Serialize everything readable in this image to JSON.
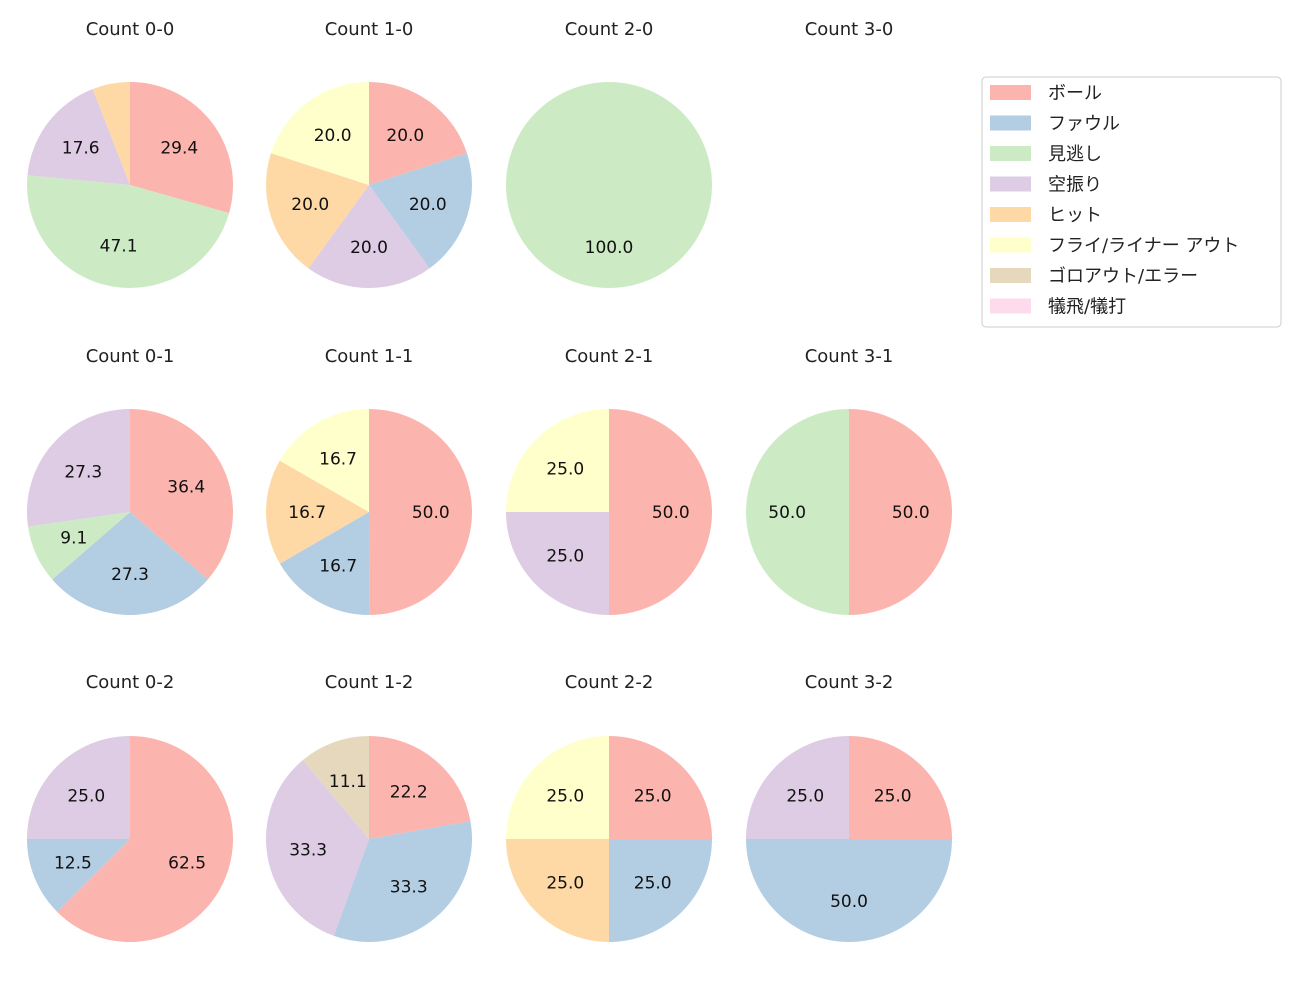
{
  "chart_data": {
    "type": "pie",
    "start_angle": 90,
    "direction": "clockwise",
    "label_format": "percent, one decimal",
    "categories": [
      "ボール",
      "ファウル",
      "見逃し",
      "空振り",
      "ヒット",
      "フライ/ライナー アウト",
      "ゴロアウト/エラー",
      "犠飛/犠打"
    ],
    "colors": [
      "#fbb4ae",
      "#b3cde3",
      "#ccebc5",
      "#decbe4",
      "#fed9a6",
      "#ffffcc",
      "#e5d8bd",
      "#fddaec"
    ],
    "legend_placement": "top-right",
    "pies": [
      {
        "title": "Count 0-0",
        "values": [
          29.4,
          0,
          47.1,
          17.6,
          5.9,
          0,
          0,
          0
        ]
      },
      {
        "title": "Count 1-0",
        "values": [
          20,
          20,
          0,
          20,
          20,
          20,
          0,
          0
        ]
      },
      {
        "title": "Count 2-0",
        "values": [
          0,
          0,
          100,
          0,
          0,
          0,
          0,
          0
        ]
      },
      {
        "title": "Count 3-0",
        "values": []
      },
      {
        "title": "Count 0-1",
        "values": [
          36.4,
          27.3,
          9.1,
          27.3,
          0,
          0,
          0,
          0
        ]
      },
      {
        "title": "Count 1-1",
        "values": [
          50,
          16.7,
          0,
          0,
          16.7,
          16.7,
          0,
          0
        ]
      },
      {
        "title": "Count 2-1",
        "values": [
          50,
          0,
          0,
          25,
          0,
          25,
          0,
          0
        ]
      },
      {
        "title": "Count 3-1",
        "values": [
          50,
          0,
          50,
          0,
          0,
          0,
          0,
          0
        ]
      },
      {
        "title": "Count 0-2",
        "values": [
          62.5,
          12.5,
          0,
          25,
          0,
          0,
          0,
          0
        ]
      },
      {
        "title": "Count 1-2",
        "values": [
          22.2,
          33.3,
          0,
          33.3,
          0,
          0,
          11.1,
          0
        ]
      },
      {
        "title": "Count 2-2",
        "values": [
          25,
          25,
          0,
          0,
          25,
          25,
          0,
          0
        ]
      },
      {
        "title": "Count 3-2",
        "values": [
          25,
          50,
          0,
          25,
          0,
          0,
          0,
          0
        ]
      }
    ]
  }
}
